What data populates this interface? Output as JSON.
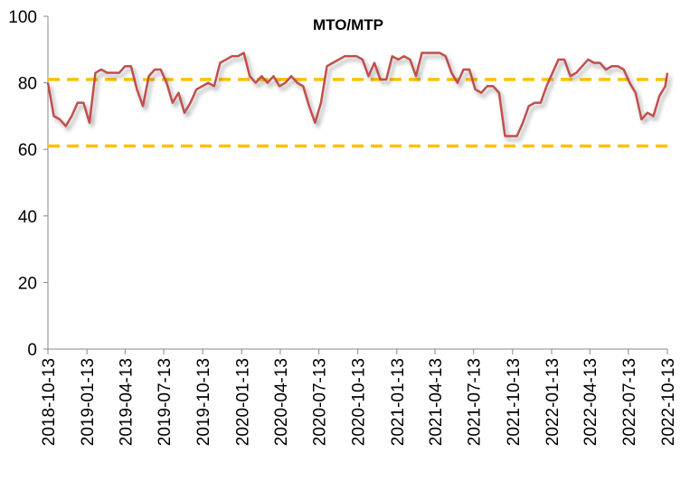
{
  "chart_data": {
    "type": "line",
    "title": "MTO/MTP",
    "x": [
      "2018-10-13",
      "2018-10-27",
      "2018-11-10",
      "2018-11-24",
      "2018-12-08",
      "2018-12-22",
      "2019-01-05",
      "2019-01-19",
      "2019-02-02",
      "2019-02-16",
      "2019-03-02",
      "2019-03-16",
      "2019-03-30",
      "2019-04-13",
      "2019-04-27",
      "2019-05-11",
      "2019-05-25",
      "2019-06-08",
      "2019-06-22",
      "2019-07-06",
      "2019-07-20",
      "2019-08-03",
      "2019-08-17",
      "2019-08-31",
      "2019-09-14",
      "2019-09-28",
      "2019-10-12",
      "2019-10-26",
      "2019-11-09",
      "2019-11-23",
      "2019-12-07",
      "2019-12-21",
      "2020-01-04",
      "2020-01-18",
      "2020-02-01",
      "2020-02-15",
      "2020-02-29",
      "2020-03-14",
      "2020-03-28",
      "2020-04-11",
      "2020-04-25",
      "2020-05-09",
      "2020-05-23",
      "2020-06-06",
      "2020-06-20",
      "2020-07-04",
      "2020-07-18",
      "2020-08-01",
      "2020-08-15",
      "2020-08-29",
      "2020-09-12",
      "2020-09-26",
      "2020-10-10",
      "2020-10-24",
      "2020-11-07",
      "2020-11-21",
      "2020-12-05",
      "2020-12-19",
      "2021-01-02",
      "2021-01-16",
      "2021-01-30",
      "2021-02-13",
      "2021-02-27",
      "2021-03-13",
      "2021-03-27",
      "2021-04-10",
      "2021-04-24",
      "2021-05-08",
      "2021-05-22",
      "2021-06-05",
      "2021-06-19",
      "2021-07-03",
      "2021-07-17",
      "2021-07-31",
      "2021-08-14",
      "2021-08-28",
      "2021-09-11",
      "2021-09-25",
      "2021-10-09",
      "2021-10-23",
      "2021-11-06",
      "2021-11-20",
      "2021-12-04",
      "2021-12-18",
      "2022-01-01",
      "2022-01-15",
      "2022-01-29",
      "2022-02-12",
      "2022-02-26",
      "2022-03-12",
      "2022-03-26",
      "2022-04-09",
      "2022-04-23",
      "2022-05-07",
      "2022-05-21",
      "2022-06-04",
      "2022-06-18",
      "2022-07-02",
      "2022-07-16",
      "2022-07-30",
      "2022-08-13",
      "2022-08-27",
      "2022-09-10",
      "2022-09-24",
      "2022-10-08",
      "2022-10-13"
    ],
    "series": [
      {
        "name": "MTO/MTP",
        "color": "#c0504d",
        "values": [
          80,
          70,
          69,
          67,
          70,
          74,
          74,
          68,
          83,
          84,
          83,
          83,
          83,
          85,
          85,
          78,
          73,
          82,
          84,
          84,
          80,
          74,
          77,
          71,
          74,
          78,
          79,
          80,
          79,
          86,
          87,
          88,
          88,
          89,
          82,
          80,
          82,
          80,
          82,
          79,
          80,
          82,
          80,
          79,
          73,
          68,
          74,
          85,
          86,
          87,
          88,
          88,
          88,
          87,
          82,
          86,
          81,
          81,
          88,
          87,
          88,
          87,
          82,
          89,
          89,
          89,
          89,
          88,
          83,
          80,
          84,
          84,
          78,
          77,
          79,
          79,
          77,
          64,
          64,
          64,
          68,
          73,
          74,
          74,
          79,
          83,
          87,
          87,
          82,
          83,
          85,
          87,
          86,
          86,
          84,
          85,
          85,
          84,
          80,
          77,
          69,
          71,
          70,
          76,
          79,
          83
        ]
      }
    ],
    "reference_lines": [
      {
        "value": 81,
        "color": "#ffc000"
      },
      {
        "value": 61,
        "color": "#ffc000"
      }
    ],
    "xlim": [
      "2018-10-13",
      "2022-10-13"
    ],
    "xticks": [
      "2018-10-13",
      "2019-01-13",
      "2019-04-13",
      "2019-07-13",
      "2019-10-13",
      "2020-01-13",
      "2020-04-13",
      "2020-07-13",
      "2020-10-13",
      "2021-01-13",
      "2021-04-13",
      "2021-07-13",
      "2021-10-13",
      "2022-01-13",
      "2022-04-13",
      "2022-07-13",
      "2022-10-13"
    ],
    "ylim": [
      0,
      100
    ],
    "yticks": [
      0,
      20,
      40,
      60,
      80,
      100
    ],
    "grid": false
  }
}
